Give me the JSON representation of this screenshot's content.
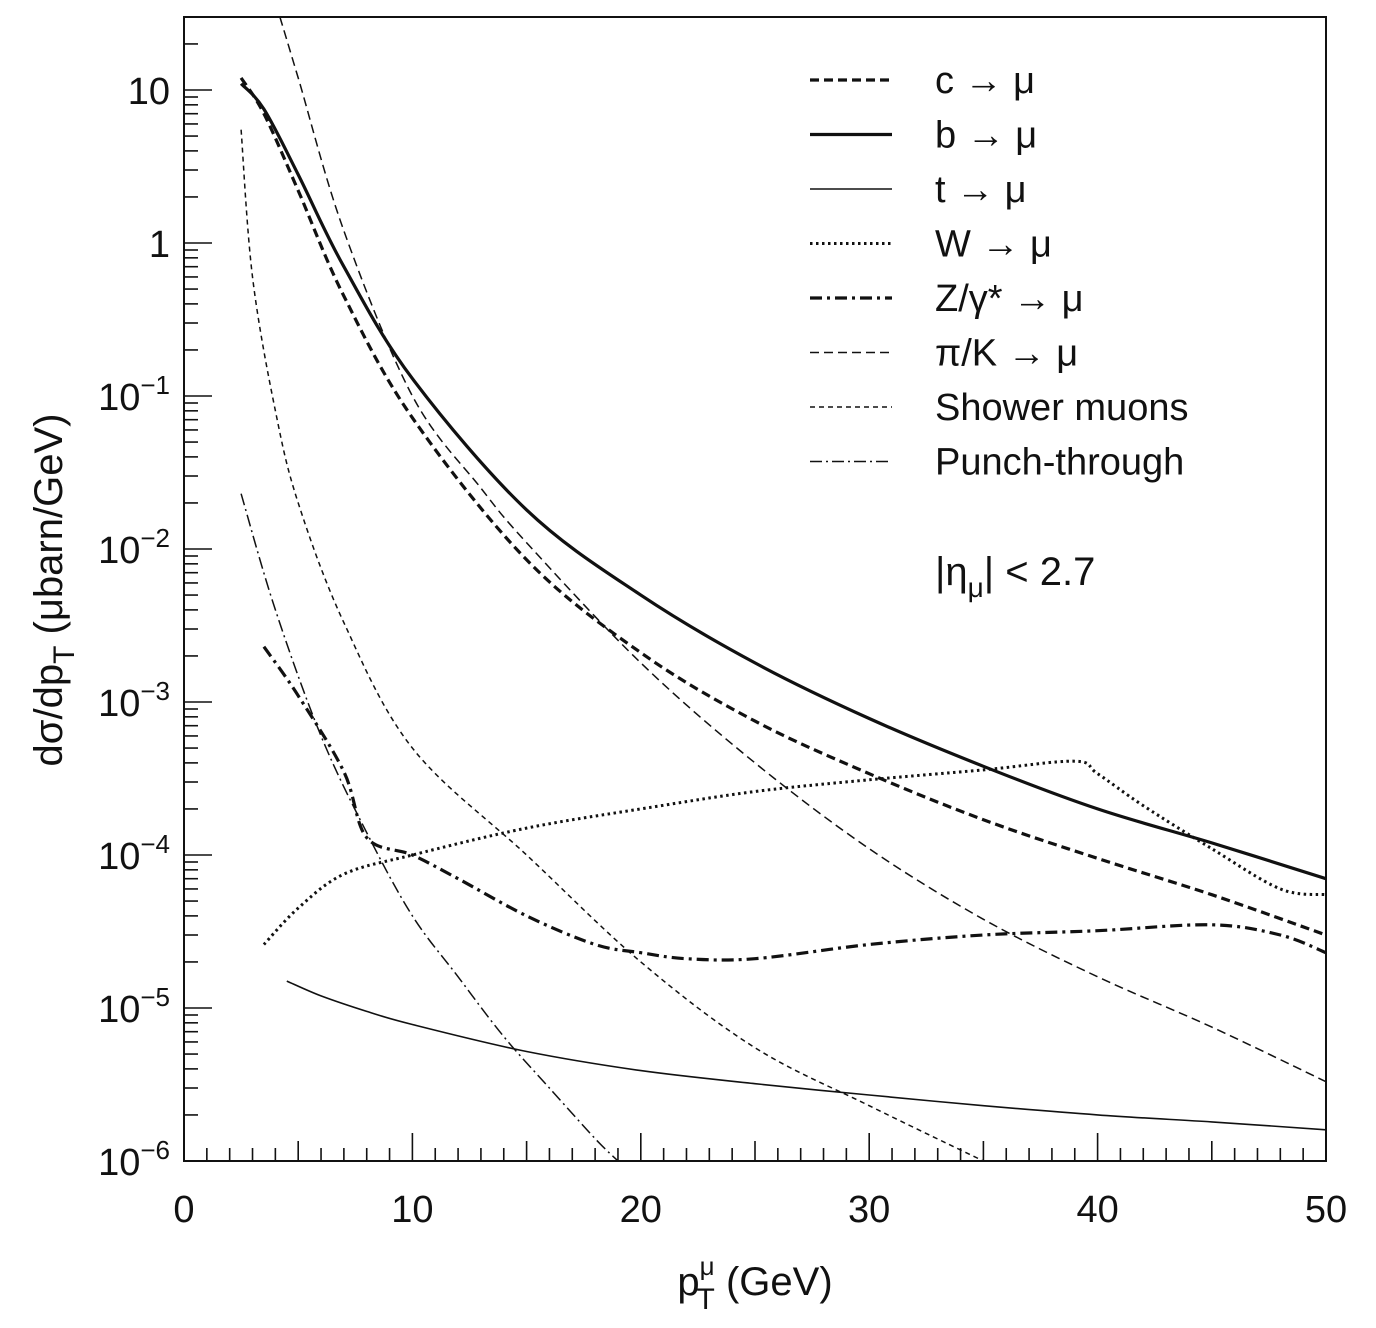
{
  "chart_data": {
    "type": "line",
    "xlabel": "p",
    "xlabel_sup": "μ",
    "xlabel_sub": "T",
    "xlabel_unit": "(GeV)",
    "ylabel_main": "dσ/dp",
    "ylabel_sub": "T",
    "ylabel_unit": "(μbarn/GeV)",
    "annotation": "|η",
    "annotation_sub": "μ",
    "annotation_tail": "| < 2.7",
    "xlim": [
      0,
      50
    ],
    "ylim": [
      1e-06,
      30
    ],
    "yscale": "log",
    "grid": false,
    "legend_position": "top-right",
    "x_ticks": [
      "0",
      "10",
      "20",
      "30",
      "40",
      "50"
    ],
    "x_tick_values": [
      0,
      10,
      20,
      30,
      40,
      50
    ],
    "y_ticks": [
      {
        "value": 10,
        "base": "10",
        "exp": ""
      },
      {
        "value": 1,
        "base": "1",
        "exp": ""
      },
      {
        "value": 0.1,
        "base": "10",
        "exp": "−1"
      },
      {
        "value": 0.01,
        "base": "10",
        "exp": "−2"
      },
      {
        "value": 0.001,
        "base": "10",
        "exp": "−3"
      },
      {
        "value": 0.0001,
        "base": "10",
        "exp": "−4"
      },
      {
        "value": 1e-05,
        "base": "10",
        "exp": "−5"
      },
      {
        "value": 1e-06,
        "base": "10",
        "exp": "−6"
      }
    ],
    "series": [
      {
        "name": "c → μ",
        "style": "dash-thick",
        "x": [
          2.5,
          3.5,
          5,
          7,
          10,
          15,
          20,
          25,
          30,
          35,
          40,
          45,
          50
        ],
        "y": [
          12,
          7,
          2.2,
          0.45,
          0.072,
          0.0085,
          0.0021,
          0.00075,
          0.00034,
          0.00017,
          9.5e-05,
          5.5e-05,
          3e-05
        ]
      },
      {
        "name": "b → μ",
        "style": "solid-thick",
        "x": [
          2.5,
          3.5,
          5,
          7,
          10,
          15,
          20,
          25,
          30,
          35,
          40,
          45,
          50
        ],
        "y": [
          11,
          7.5,
          2.8,
          0.7,
          0.13,
          0.018,
          0.005,
          0.0018,
          0.00078,
          0.00038,
          0.0002,
          0.00012,
          7e-05
        ]
      },
      {
        "name": "t → μ",
        "style": "solid-thin",
        "x": [
          4.5,
          6,
          8,
          10,
          15,
          20,
          25,
          30,
          35,
          40,
          45,
          50
        ],
        "y": [
          1.5e-05,
          1.2e-05,
          9.5e-06,
          7.8e-06,
          5.2e-06,
          3.9e-06,
          3.2e-06,
          2.7e-06,
          2.3e-06,
          2e-06,
          1.8e-06,
          1.6e-06
        ]
      },
      {
        "name": "W → μ",
        "style": "dotted",
        "x": [
          3.5,
          5,
          7,
          10,
          15,
          20,
          25,
          30,
          35,
          39,
          40,
          42,
          45,
          48,
          50
        ],
        "y": [
          2.6e-05,
          4.5e-05,
          7.5e-05,
          0.0001,
          0.00015,
          0.0002,
          0.00026,
          0.00031,
          0.00036,
          0.00041,
          0.00034,
          0.00021,
          0.00011,
          6e-05,
          5.5e-05
        ]
      },
      {
        "name": "Z/γ* → μ",
        "style": "dashdot-thick",
        "x": [
          3.5,
          5,
          7,
          8,
          10,
          12,
          15,
          18,
          20,
          22,
          25,
          30,
          35,
          40,
          45,
          48,
          50
        ],
        "y": [
          0.0023,
          0.0011,
          0.00035,
          0.00013,
          0.0001,
          7e-05,
          4e-05,
          2.6e-05,
          2.3e-05,
          2.1e-05,
          2.1e-05,
          2.6e-05,
          3e-05,
          3.2e-05,
          3.5e-05,
          3e-05,
          2.3e-05
        ]
      },
      {
        "name": "π/K → μ",
        "style": "dash-thin",
        "x": [
          4.2,
          5,
          7,
          10,
          13,
          15,
          20,
          25,
          30,
          35,
          40,
          45,
          50
        ],
        "y": [
          30,
          12,
          1.2,
          0.1,
          0.025,
          0.011,
          0.0018,
          0.0004,
          0.00011,
          3.8e-05,
          1.6e-05,
          7.5e-06,
          3.3e-06
        ]
      },
      {
        "name": "Shower muons",
        "style": "short-dash-thin",
        "x": [
          2.5,
          3,
          4,
          5,
          7,
          10,
          15,
          20,
          25,
          30,
          35
        ],
        "y": [
          5.5,
          0.6,
          0.08,
          0.02,
          0.0033,
          0.0005,
          0.0001,
          2e-05,
          5.5e-06,
          2.3e-06,
          1e-06
        ]
      },
      {
        "name": "Punch-through",
        "style": "dashdot-thin",
        "x": [
          2.5,
          4,
          6,
          8,
          10,
          12,
          14,
          16,
          18,
          19
        ],
        "y": [
          0.023,
          0.004,
          0.0006,
          0.00014,
          4e-05,
          1.6e-05,
          6.5e-06,
          3e-06,
          1.4e-06,
          1e-06
        ]
      }
    ]
  }
}
